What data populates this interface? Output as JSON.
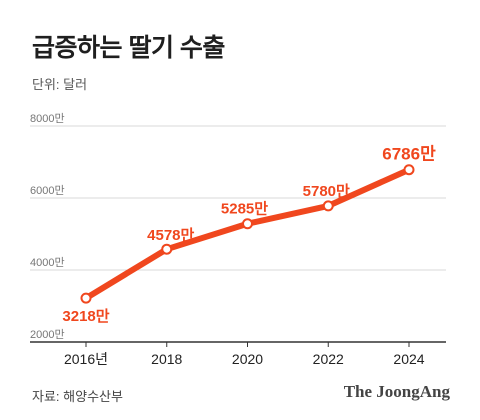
{
  "header": {
    "title": "급증하는 딸기 수출",
    "unit_label": "단위: 달러"
  },
  "footer": {
    "source": "자료: 해양수산부",
    "brand": "The JoongAng"
  },
  "colors": {
    "series": "#f0471e",
    "grid": "#d9d9d9",
    "axis": "#333333",
    "tick_text": "#777777"
  },
  "chart_data": {
    "type": "line",
    "title": "급증하는 딸기 수출",
    "unit": "단위: 달러",
    "x": [
      2016,
      2018,
      2020,
      2022,
      2024
    ],
    "x_tick_labels": [
      "2016년",
      "2018",
      "2020",
      "2022",
      "2024"
    ],
    "series": [
      {
        "values": [
          3218,
          4578,
          5285,
          5780,
          6786
        ],
        "labels": [
          "3218만",
          "4578만",
          "5285만",
          "5780만",
          "6786만"
        ]
      }
    ],
    "y_ticks": [
      2000,
      4000,
      6000,
      8000
    ],
    "y_tick_labels": [
      "2000만",
      "4000만",
      "6000만",
      "8000만"
    ],
    "ylim": [
      2000,
      8000
    ],
    "grid": true
  }
}
